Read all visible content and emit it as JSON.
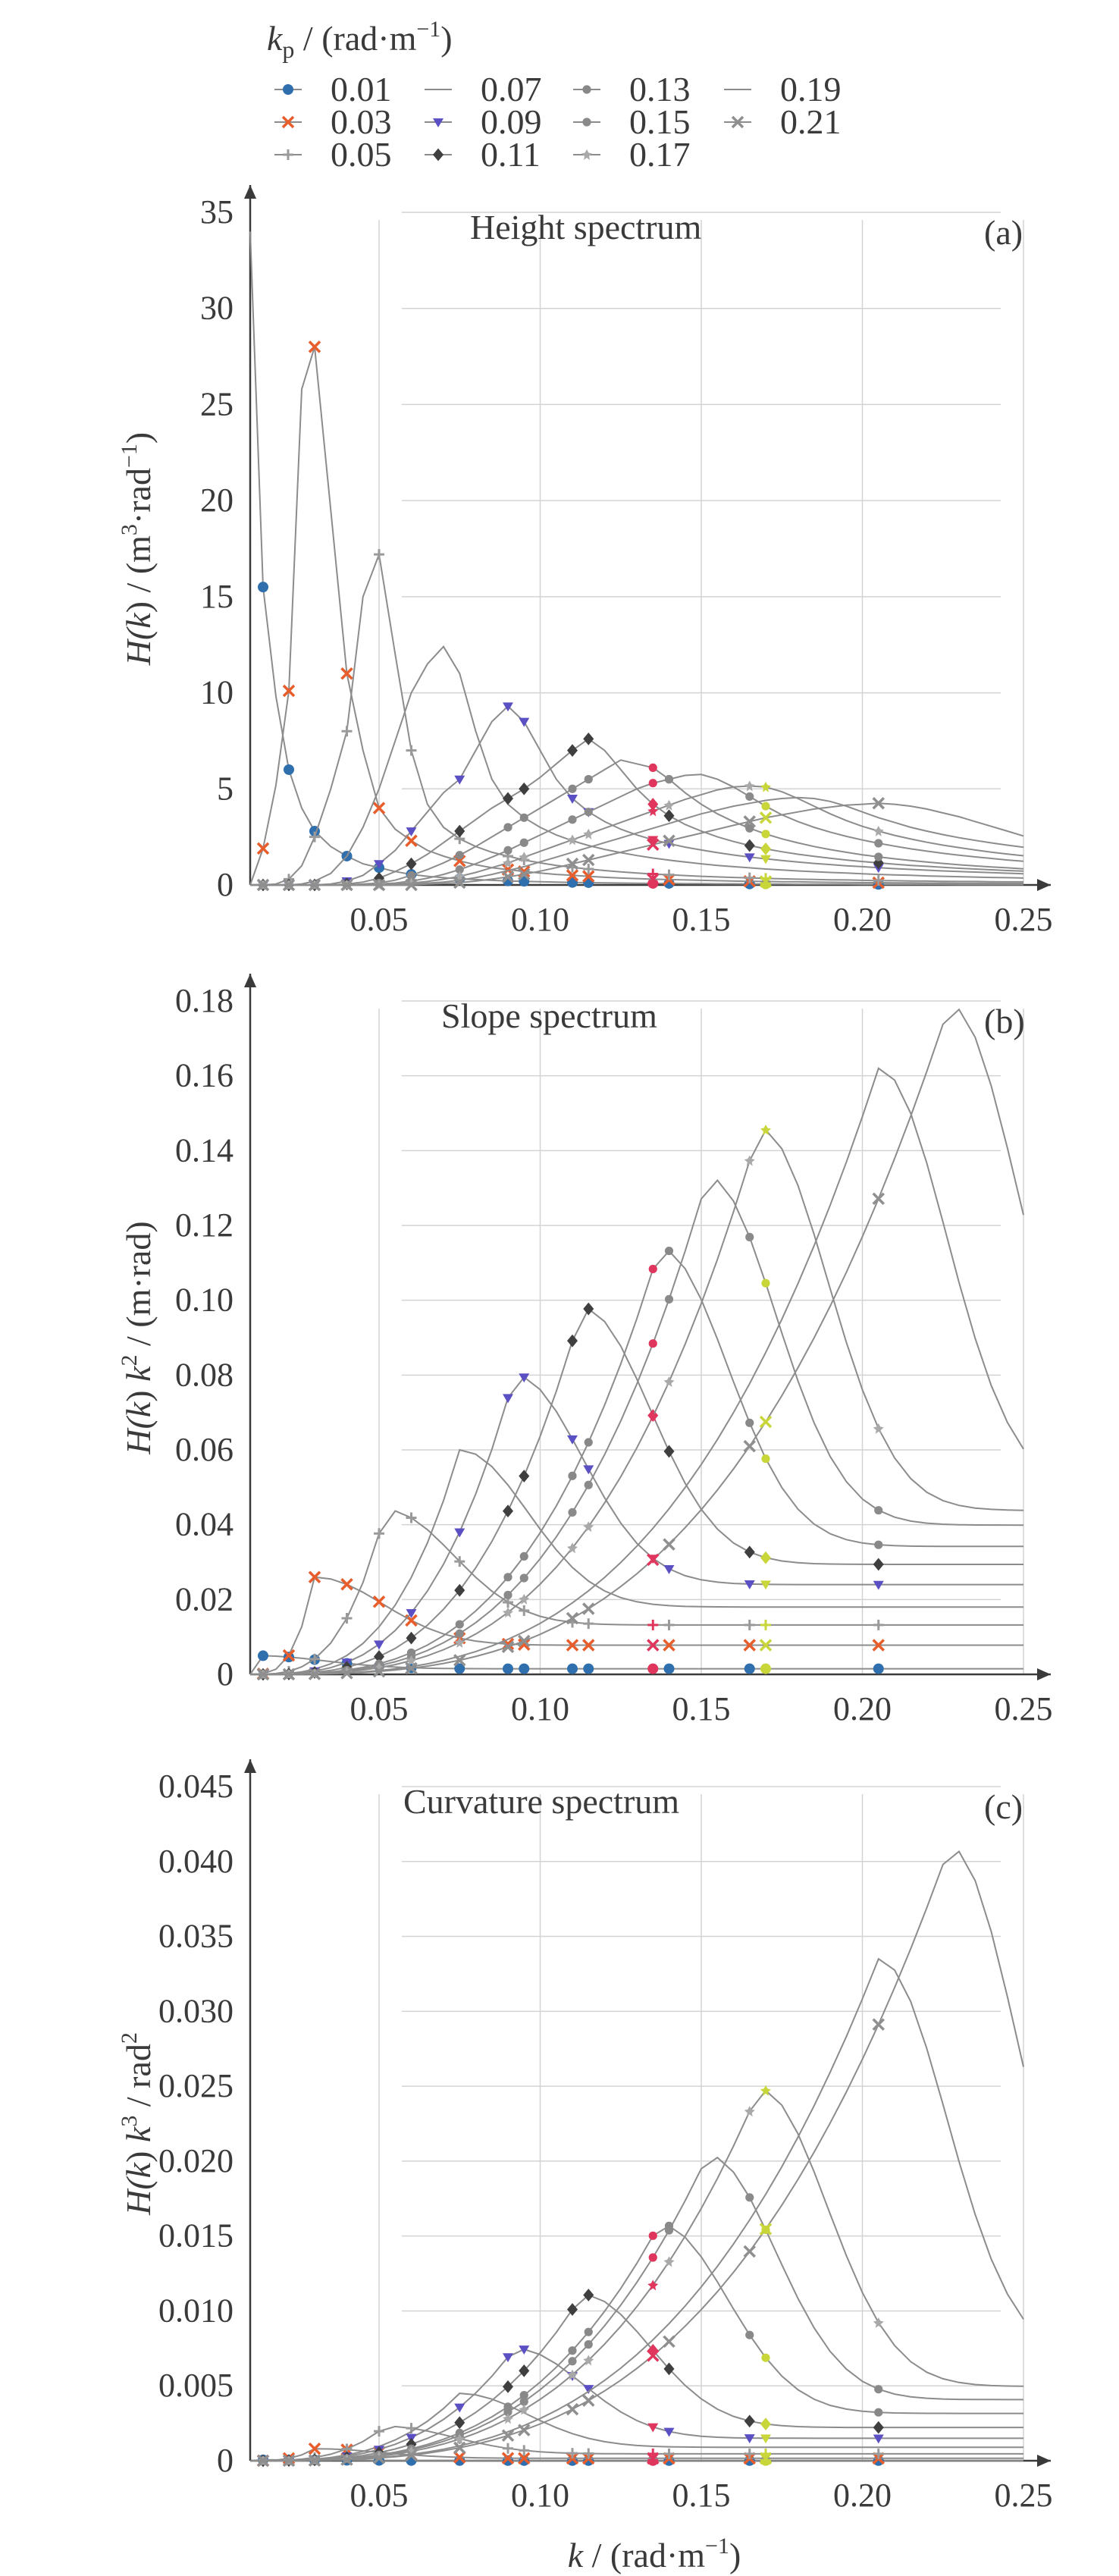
{
  "legend": {
    "title": "k_p / (rad·m⁻¹)",
    "title_parts": {
      "symbol": "k",
      "subscript": "p",
      "unit": " / (rad·m",
      "exponent": "−1",
      "close": ")"
    }
  },
  "colors": {
    "0.01": "#2f6fad",
    "0.03": "#e85d2c",
    "0.05": "#9a9a9a",
    "0.07": "#7a7a7a",
    "0.09": "#5b4fc4",
    "0.11": "#3f3f3f",
    "0.13": "#888888",
    "0.15": "#8a8a8a",
    "0.17": "#a9a9a9",
    "0.19": "#9c9c9c",
    "0.21": "#8f8f8f",
    "red_marker": "#e0355c",
    "yellow_marker": "#c9d63a",
    "axis": "#3a3a3a",
    "grid": "#d3d3d3",
    "line": "#8c8c8c"
  },
  "chart_data": [
    {
      "type": "line",
      "panel_label": "(a)",
      "title": "Height spectrum",
      "xlabel": "",
      "ylabel": "H(k) / (m³·rad⁻¹)",
      "ylabel_parts": {
        "main": "H(",
        "var": "k",
        "mid": ") / (m",
        "exp1": "3",
        "mid2": "·rad",
        "exp2": "−1",
        "close": ")"
      },
      "xlim": [
        0.01,
        0.25
      ],
      "ylim": [
        0,
        35
      ],
      "x_ticks": [
        "0.05",
        "0.10",
        "0.15",
        "0.20",
        "0.25"
      ],
      "y_ticks": [
        "0",
        "5",
        "10",
        "15",
        "20",
        "25",
        "30",
        "35"
      ],
      "grid": "vertical at x ticks, horizontal gray lines",
      "x": [
        0.01,
        0.014,
        0.018,
        0.022,
        0.026,
        0.03,
        0.035,
        0.04,
        0.045,
        0.05,
        0.055,
        0.06,
        0.065,
        0.07,
        0.075,
        0.08,
        0.085,
        0.09,
        0.095,
        0.1,
        0.105,
        0.11,
        0.115,
        0.12,
        0.125,
        0.13,
        0.135,
        0.14,
        0.145,
        0.15,
        0.155,
        0.16,
        0.165,
        0.17,
        0.175,
        0.18,
        0.185,
        0.19,
        0.195,
        0.2,
        0.205,
        0.21,
        0.215,
        0.22,
        0.225,
        0.23,
        0.235,
        0.24,
        0.245,
        0.25
      ],
      "series": [
        {
          "name": "0.01",
          "marker": "circle",
          "values": [
            34.0,
            15.5,
            9.8,
            6.0,
            4.0,
            2.8,
            2.0,
            1.5,
            1.1,
            0.9,
            0.7,
            0.55,
            0.45,
            0.38,
            0.32,
            0.28,
            0.24,
            0.21,
            0.19,
            0.17,
            0.15,
            0.13,
            0.12,
            0.11,
            0.1,
            0.09,
            0.08,
            0.08,
            0.07,
            0.07,
            0.06,
            0.06,
            0.05,
            0.05,
            0.05,
            0.04,
            0.04,
            0.04,
            0.04,
            0.03,
            0.03,
            0.03,
            0.03,
            0.03,
            0.03,
            0.02,
            0.02,
            0.02,
            0.02,
            0.02
          ]
        },
        {
          "name": "0.03",
          "marker": "x",
          "values": [
            0.0,
            1.9,
            5.2,
            10.1,
            25.8,
            28.0,
            19.5,
            11.0,
            7.0,
            4.0,
            2.9,
            2.3,
            1.8,
            1.5,
            1.25,
            1.05,
            0.9,
            0.8,
            0.7,
            0.62,
            0.55,
            0.5,
            0.45,
            0.4,
            0.36,
            0.33,
            0.3,
            0.28,
            0.26,
            0.24,
            0.22,
            0.2,
            0.19,
            0.18,
            0.17,
            0.16,
            0.15,
            0.14,
            0.13,
            0.12,
            0.12,
            0.11,
            0.11,
            0.1,
            0.1,
            0.09,
            0.09,
            0.09,
            0.08,
            0.08
          ]
        },
        {
          "name": "0.05",
          "marker": "plus",
          "values": [
            0.0,
            0.0,
            0.05,
            0.3,
            1.0,
            2.5,
            5.0,
            8.0,
            15.0,
            17.2,
            12.0,
            7.0,
            4.2,
            3.0,
            2.4,
            2.0,
            1.7,
            1.5,
            1.3,
            1.15,
            1.02,
            0.92,
            0.83,
            0.75,
            0.68,
            0.62,
            0.57,
            0.53,
            0.49,
            0.45,
            0.42,
            0.39,
            0.37,
            0.34,
            0.32,
            0.3,
            0.29,
            0.27,
            0.26,
            0.24,
            0.23,
            0.22,
            0.21,
            0.2,
            0.19,
            0.18,
            0.18,
            0.17,
            0.16,
            0.16
          ]
        },
        {
          "name": "0.07",
          "marker": "none",
          "values": [
            0.0,
            0.0,
            0.0,
            0.0,
            0.05,
            0.2,
            0.6,
            1.5,
            3.0,
            5.0,
            7.5,
            10.0,
            11.5,
            12.4,
            11.0,
            8.0,
            5.5,
            4.2,
            3.5,
            3.0,
            2.6,
            2.3,
            2.05,
            1.85,
            1.68,
            1.53,
            1.4,
            1.29,
            1.19,
            1.1,
            1.02,
            0.95,
            0.89,
            0.83,
            0.78,
            0.73,
            0.69,
            0.65,
            0.62,
            0.58,
            0.55,
            0.52,
            0.5,
            0.47,
            0.45,
            0.43,
            0.41,
            0.39,
            0.38,
            0.36
          ]
        },
        {
          "name": "0.09",
          "marker": "triangle-down",
          "values": [
            0.0,
            0.0,
            0.0,
            0.0,
            0.0,
            0.0,
            0.05,
            0.2,
            0.5,
            1.1,
            1.8,
            2.8,
            3.8,
            4.8,
            5.5,
            7.0,
            8.5,
            9.3,
            8.5,
            7.0,
            5.5,
            4.5,
            3.8,
            3.3,
            2.9,
            2.6,
            2.35,
            2.15,
            1.97,
            1.82,
            1.68,
            1.56,
            1.45,
            1.36,
            1.27,
            1.19,
            1.12,
            1.06,
            1.0,
            0.95,
            0.9,
            0.85,
            0.81,
            0.77,
            0.73,
            0.7,
            0.67,
            0.64,
            0.61,
            0.58
          ]
        },
        {
          "name": "0.11",
          "marker": "diamond",
          "values": [
            0.0,
            0.0,
            0.0,
            0.0,
            0.0,
            0.0,
            0.0,
            0.05,
            0.15,
            0.35,
            0.7,
            1.1,
            1.6,
            2.2,
            2.8,
            3.4,
            4.0,
            4.5,
            5.0,
            5.6,
            6.3,
            7.0,
            7.6,
            7.0,
            6.0,
            5.0,
            4.2,
            3.6,
            3.15,
            2.8,
            2.5,
            2.26,
            2.05,
            1.88,
            1.73,
            1.6,
            1.49,
            1.39,
            1.3,
            1.22,
            1.15,
            1.08,
            1.02,
            0.97,
            0.92,
            0.87,
            0.83,
            0.79,
            0.75,
            0.72
          ]
        },
        {
          "name": "0.13",
          "marker": "hexagon",
          "values": [
            0.0,
            0.0,
            0.0,
            0.0,
            0.0,
            0.0,
            0.0,
            0.0,
            0.05,
            0.1,
            0.25,
            0.5,
            0.8,
            1.15,
            1.55,
            2.0,
            2.5,
            3.0,
            3.5,
            4.0,
            4.5,
            5.0,
            5.5,
            6.0,
            6.5,
            6.3,
            6.1,
            5.5,
            4.8,
            4.2,
            3.7,
            3.3,
            2.95,
            2.65,
            2.4,
            2.19,
            2.0,
            1.84,
            1.7,
            1.57,
            1.46,
            1.36,
            1.27,
            1.19,
            1.12,
            1.05,
            0.99,
            0.94,
            0.89,
            0.84
          ]
        },
        {
          "name": "0.15",
          "marker": "hexagon",
          "values": [
            0.0,
            0.0,
            0.0,
            0.0,
            0.0,
            0.0,
            0.0,
            0.0,
            0.0,
            0.05,
            0.1,
            0.2,
            0.35,
            0.55,
            0.8,
            1.1,
            1.45,
            1.8,
            2.2,
            2.6,
            3.0,
            3.4,
            3.8,
            4.2,
            4.6,
            5.0,
            5.3,
            5.5,
            5.7,
            5.75,
            5.5,
            5.1,
            4.6,
            4.1,
            3.65,
            3.3,
            3.0,
            2.75,
            2.53,
            2.34,
            2.17,
            2.02,
            1.88,
            1.76,
            1.65,
            1.55,
            1.46,
            1.38,
            1.3,
            1.23
          ]
        },
        {
          "name": "0.17",
          "marker": "star",
          "values": [
            0.0,
            0.0,
            0.0,
            0.0,
            0.0,
            0.0,
            0.0,
            0.0,
            0.0,
            0.0,
            0.05,
            0.1,
            0.18,
            0.3,
            0.45,
            0.65,
            0.9,
            1.15,
            1.45,
            1.75,
            2.05,
            2.35,
            2.65,
            2.95,
            3.25,
            3.55,
            3.85,
            4.15,
            4.45,
            4.7,
            4.95,
            5.1,
            5.15,
            5.1,
            4.85,
            4.5,
            4.1,
            3.7,
            3.35,
            3.05,
            2.8,
            2.58,
            2.39,
            2.22,
            2.07,
            1.94,
            1.82,
            1.71,
            1.61,
            1.52
          ]
        },
        {
          "name": "0.19",
          "marker": "none",
          "values": [
            0.0,
            0.0,
            0.0,
            0.0,
            0.0,
            0.0,
            0.0,
            0.0,
            0.0,
            0.0,
            0.0,
            0.05,
            0.1,
            0.15,
            0.25,
            0.38,
            0.55,
            0.75,
            0.95,
            1.2,
            1.45,
            1.7,
            1.95,
            2.2,
            2.45,
            2.7,
            2.95,
            3.2,
            3.45,
            3.7,
            3.9,
            4.1,
            4.25,
            4.4,
            4.5,
            4.55,
            4.5,
            4.35,
            4.1,
            3.8,
            3.5,
            3.25,
            3.0,
            2.8,
            2.62,
            2.46,
            2.32,
            2.19,
            2.07,
            1.96
          ]
        },
        {
          "name": "0.21",
          "marker": "x-small",
          "values": [
            0.0,
            0.0,
            0.0,
            0.0,
            0.0,
            0.0,
            0.0,
            0.0,
            0.0,
            0.0,
            0.0,
            0.0,
            0.05,
            0.08,
            0.12,
            0.2,
            0.3,
            0.42,
            0.56,
            0.72,
            0.9,
            1.1,
            1.3,
            1.5,
            1.7,
            1.9,
            2.1,
            2.3,
            2.5,
            2.7,
            2.9,
            3.1,
            3.3,
            3.5,
            3.65,
            3.8,
            3.95,
            4.05,
            4.15,
            4.2,
            4.25,
            4.2,
            4.1,
            3.95,
            3.75,
            3.55,
            3.3,
            3.05,
            2.8,
            2.55
          ]
        }
      ]
    },
    {
      "type": "line",
      "panel_label": "(b)",
      "title": "Slope spectrum",
      "xlabel": "",
      "ylabel": "H(k) k² / (m·rad)",
      "ylabel_parts": {
        "main": "H(",
        "var": "k",
        "mid": ") ",
        "var2": "k",
        "exp1": "2",
        "close": " / (m·rad)"
      },
      "xlim": [
        0.01,
        0.25
      ],
      "ylim": [
        0,
        0.18
      ],
      "x_ticks": [
        "0.05",
        "0.10",
        "0.15",
        "0.20",
        "0.25"
      ],
      "y_ticks": [
        "0",
        "0.02",
        "0.04",
        "0.06",
        "0.08",
        "0.10",
        "0.12",
        "0.14",
        "0.16",
        "0.18"
      ],
      "grid": "vertical at x ticks, horizontal gray lines",
      "series": [
        {
          "name": "0.01",
          "peak": [
            0.012,
            0.005
          ]
        },
        {
          "name": "0.03",
          "peak": [
            0.03,
            0.026
          ]
        },
        {
          "name": "0.05",
          "peak": [
            0.052,
            0.044
          ]
        },
        {
          "name": "0.07",
          "peak": [
            0.075,
            0.06
          ]
        },
        {
          "name": "0.09",
          "peak": [
            0.092,
            0.08
          ]
        },
        {
          "name": "0.11",
          "peak": [
            0.113,
            0.098
          ]
        },
        {
          "name": "0.13",
          "peak": [
            0.137,
            0.114
          ]
        },
        {
          "name": "0.15",
          "peak": [
            0.152,
            0.133
          ]
        },
        {
          "name": "0.17",
          "peak": [
            0.168,
            0.146
          ]
        },
        {
          "name": "0.19",
          "peak": [
            0.205,
            0.162
          ]
        },
        {
          "name": "0.21",
          "peak": [
            0.227,
            0.179
          ]
        }
      ]
    },
    {
      "type": "line",
      "panel_label": "(c)",
      "title": "Curvature spectrum",
      "xlabel": "k / (rad·m⁻¹)",
      "xlabel_parts": {
        "var": "k",
        "unit": " / (rad·m",
        "exp": "−1",
        "close": ")"
      },
      "ylabel": "H(k) k³ / rad²",
      "ylabel_parts": {
        "main": "H(",
        "var": "k",
        "mid": ") ",
        "var2": "k",
        "exp1": "3",
        "mid2": " / rad",
        "exp2": "2"
      },
      "xlim": [
        0.01,
        0.25
      ],
      "ylim": [
        0,
        0.045
      ],
      "x_ticks": [
        "0.05",
        "0.10",
        "0.15",
        "0.20",
        "0.25"
      ],
      "y_ticks": [
        "0",
        "0.005",
        "0.010",
        "0.015",
        "0.020",
        "0.025",
        "0.030",
        "0.035",
        "0.040",
        "0.045"
      ],
      "grid": "vertical at x ticks, horizontal gray lines",
      "series": [
        {
          "name": "0.01",
          "peak": [
            0.012,
            6e-05
          ]
        },
        {
          "name": "0.03",
          "peak": [
            0.03,
            0.0008
          ]
        },
        {
          "name": "0.05",
          "peak": [
            0.052,
            0.0023
          ]
        },
        {
          "name": "0.07",
          "peak": [
            0.075,
            0.0045
          ]
        },
        {
          "name": "0.09",
          "peak": [
            0.092,
            0.0075
          ]
        },
        {
          "name": "0.11",
          "peak": [
            0.113,
            0.0111
          ]
        },
        {
          "name": "0.13",
          "peak": [
            0.137,
            0.0158
          ]
        },
        {
          "name": "0.15",
          "peak": [
            0.152,
            0.0204
          ]
        },
        {
          "name": "0.17",
          "peak": [
            0.168,
            0.0248
          ]
        },
        {
          "name": "0.19",
          "peak": [
            0.205,
            0.0335
          ]
        },
        {
          "name": "0.21",
          "peak": [
            0.227,
            0.041
          ]
        }
      ]
    }
  ]
}
